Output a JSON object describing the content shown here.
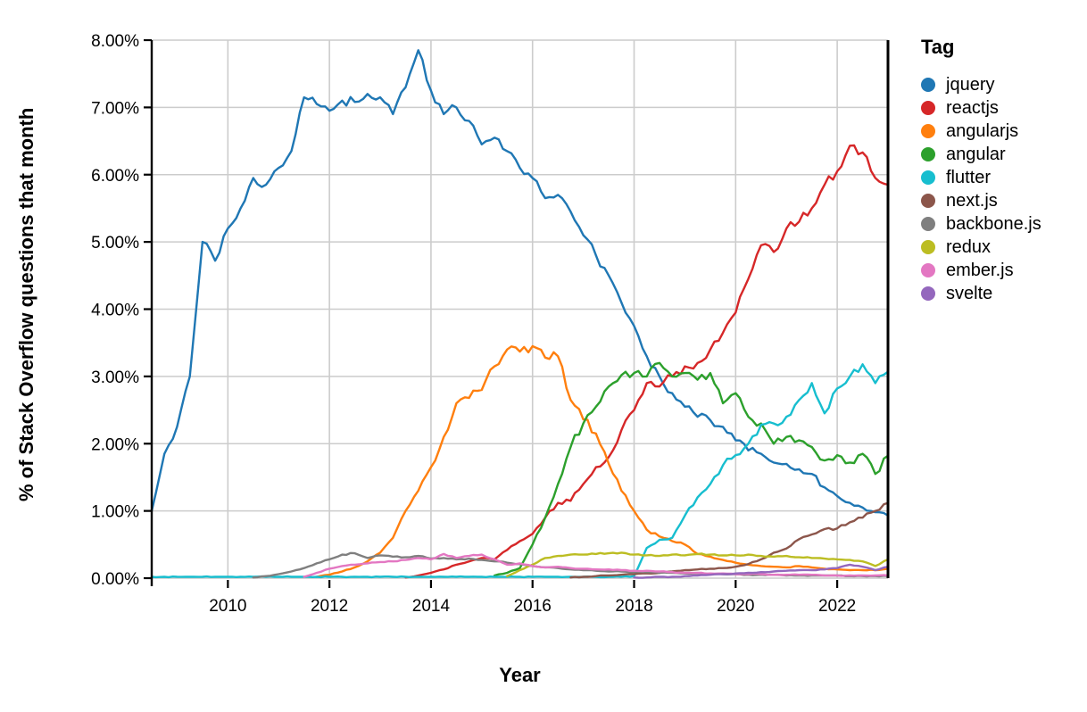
{
  "figure": {
    "y_axis": {
      "title": "% of Stack Overflow questions that month",
      "tick_labels": [
        "8.00%",
        "7.00%",
        "6.00%",
        "5.00%",
        "4.00%",
        "3.00%",
        "2.00%",
        "1.00%",
        "0.00%"
      ],
      "tick_values": [
        8,
        7,
        6,
        5,
        4,
        3,
        2,
        1,
        0
      ]
    },
    "x_axis": {
      "title": "Year",
      "tick_labels": [
        "2010",
        "2012",
        "2014",
        "2016",
        "2018",
        "2020",
        "2022"
      ],
      "tick_values": [
        2010,
        2012,
        2014,
        2016,
        2018,
        2020,
        2022
      ]
    },
    "legend": {
      "title": "Tag",
      "items": [
        {
          "label": "jquery",
          "color": "#1f77b4"
        },
        {
          "label": "reactjs",
          "color": "#d62728"
        },
        {
          "label": "angularjs",
          "color": "#ff7f0e"
        },
        {
          "label": "angular",
          "color": "#2ca02c"
        },
        {
          "label": "flutter",
          "color": "#17becf"
        },
        {
          "label": "next.js",
          "color": "#8c564b"
        },
        {
          "label": "backbone.js",
          "color": "#7f7f7f"
        },
        {
          "label": "redux",
          "color": "#bcbd22"
        },
        {
          "label": "ember.js",
          "color": "#e377c2"
        },
        {
          "label": "svelte",
          "color": "#9467bd"
        }
      ]
    }
  },
  "chart_data": {
    "type": "line",
    "title": "",
    "xlabel": "Year",
    "ylabel": "% of Stack Overflow questions that month",
    "x_range": [
      2008.5,
      2023
    ],
    "y_range": [
      0,
      8
    ],
    "grid": true,
    "legend_position": "right",
    "legend_title": "Tag",
    "x": [
      2008.5,
      2008.75,
      2009,
      2009.25,
      2009.5,
      2009.75,
      2010,
      2010.25,
      2010.5,
      2010.75,
      2011,
      2011.25,
      2011.5,
      2011.75,
      2012,
      2012.25,
      2012.5,
      2012.75,
      2013,
      2013.25,
      2013.5,
      2013.75,
      2014,
      2014.25,
      2014.5,
      2014.75,
      2015,
      2015.25,
      2015.5,
      2015.75,
      2016,
      2016.25,
      2016.5,
      2016.75,
      2017,
      2017.25,
      2017.5,
      2017.75,
      2018,
      2018.25,
      2018.5,
      2018.75,
      2019,
      2019.25,
      2019.5,
      2019.75,
      2020,
      2020.25,
      2020.5,
      2020.75,
      2021,
      2021.25,
      2021.5,
      2021.75,
      2022,
      2022.25,
      2022.5,
      2022.75,
      2023
    ],
    "series": [
      {
        "name": "jquery",
        "color": "#1f77b4",
        "values": [
          1.0,
          1.85,
          2.25,
          3.0,
          5.0,
          4.72,
          5.2,
          5.5,
          5.95,
          5.85,
          6.1,
          6.35,
          7.15,
          7.05,
          6.95,
          7.1,
          7.08,
          7.2,
          7.15,
          6.9,
          7.3,
          7.85,
          7.25,
          6.9,
          7.0,
          6.8,
          6.45,
          6.55,
          6.35,
          6.1,
          5.95,
          5.65,
          5.7,
          5.45,
          5.1,
          4.8,
          4.5,
          4.1,
          3.75,
          3.3,
          3.0,
          2.75,
          2.55,
          2.4,
          2.35,
          2.25,
          2.05,
          1.9,
          1.85,
          1.72,
          1.7,
          1.62,
          1.55,
          1.35,
          1.22,
          1.12,
          1.05,
          0.98,
          0.93
        ]
      },
      {
        "name": "reactjs",
        "color": "#d62728",
        "values": [
          null,
          null,
          null,
          null,
          null,
          null,
          null,
          null,
          null,
          null,
          null,
          null,
          null,
          null,
          null,
          null,
          null,
          null,
          null,
          null,
          0.01,
          0.04,
          0.08,
          0.13,
          0.2,
          0.25,
          0.3,
          0.28,
          0.42,
          0.55,
          0.66,
          0.9,
          1.12,
          1.15,
          1.4,
          1.65,
          1.8,
          2.2,
          2.5,
          2.9,
          2.85,
          3.0,
          3.15,
          3.2,
          3.4,
          3.65,
          3.95,
          4.45,
          4.95,
          4.85,
          5.2,
          5.3,
          5.5,
          5.85,
          6.05,
          6.43,
          6.33,
          5.95,
          5.85
        ]
      },
      {
        "name": "angularjs",
        "color": "#ff7f0e",
        "values": [
          null,
          null,
          null,
          null,
          null,
          null,
          null,
          null,
          null,
          null,
          null,
          null,
          null,
          0.02,
          0.05,
          0.1,
          0.16,
          0.25,
          0.38,
          0.6,
          1.0,
          1.3,
          1.65,
          2.1,
          2.6,
          2.68,
          2.8,
          3.15,
          3.4,
          3.37,
          3.45,
          3.28,
          3.3,
          2.65,
          2.36,
          2.15,
          1.7,
          1.3,
          1.0,
          0.72,
          0.62,
          0.55,
          0.5,
          0.36,
          0.32,
          0.27,
          0.23,
          0.2,
          0.18,
          0.17,
          0.16,
          0.18,
          0.16,
          0.14,
          0.13,
          0.12,
          0.12,
          0.12,
          0.14
        ]
      },
      {
        "name": "angular",
        "color": "#2ca02c",
        "values": [
          null,
          null,
          null,
          null,
          null,
          null,
          null,
          null,
          null,
          null,
          null,
          null,
          null,
          null,
          null,
          null,
          null,
          null,
          null,
          null,
          null,
          null,
          null,
          null,
          null,
          null,
          null,
          0.04,
          0.08,
          0.15,
          0.5,
          0.9,
          1.4,
          1.95,
          2.3,
          2.55,
          2.85,
          3.02,
          3.05,
          3.0,
          3.2,
          3.0,
          3.05,
          2.95,
          3.05,
          2.6,
          2.75,
          2.4,
          2.3,
          2.0,
          2.1,
          2.05,
          1.95,
          1.75,
          1.83,
          1.72,
          1.85,
          1.55,
          1.82
        ]
      },
      {
        "name": "flutter",
        "color": "#17becf",
        "values": [
          0.02,
          0.02,
          0.02,
          0.02,
          0.02,
          0.02,
          0.02,
          0.02,
          0.02,
          0.02,
          0.02,
          0.02,
          0.02,
          0.02,
          0.02,
          0.02,
          0.02,
          0.02,
          0.02,
          0.02,
          0.02,
          0.02,
          0.02,
          0.02,
          0.02,
          0.02,
          0.02,
          0.02,
          0.02,
          0.02,
          0.02,
          0.02,
          0.02,
          0.02,
          0.02,
          0.02,
          0.02,
          0.02,
          0.03,
          0.45,
          0.57,
          0.6,
          0.93,
          1.2,
          1.4,
          1.68,
          1.83,
          2.0,
          2.28,
          2.3,
          2.4,
          2.65,
          2.9,
          2.45,
          2.82,
          3.0,
          3.18,
          2.9,
          3.07
        ]
      },
      {
        "name": "next.js",
        "color": "#8c564b",
        "values": [
          null,
          null,
          null,
          null,
          null,
          null,
          null,
          null,
          null,
          null,
          null,
          null,
          null,
          null,
          null,
          null,
          null,
          null,
          null,
          null,
          null,
          null,
          null,
          null,
          null,
          null,
          null,
          null,
          null,
          null,
          null,
          null,
          null,
          0.01,
          0.02,
          0.03,
          0.04,
          0.05,
          0.06,
          0.07,
          0.08,
          0.1,
          0.12,
          0.13,
          0.14,
          0.15,
          0.17,
          0.21,
          0.28,
          0.38,
          0.44,
          0.58,
          0.65,
          0.73,
          0.74,
          0.83,
          0.9,
          1.0,
          1.12
        ]
      },
      {
        "name": "backbone.js",
        "color": "#7f7f7f",
        "values": [
          null,
          null,
          null,
          null,
          null,
          null,
          null,
          null,
          0.01,
          0.03,
          0.06,
          0.1,
          0.15,
          0.22,
          0.28,
          0.35,
          0.37,
          0.3,
          0.34,
          0.32,
          0.31,
          0.33,
          0.29,
          0.3,
          0.28,
          0.29,
          0.27,
          0.25,
          0.23,
          0.21,
          0.18,
          0.16,
          0.15,
          0.13,
          0.12,
          0.11,
          0.1,
          0.1,
          0.09,
          0.09,
          0.08,
          0.08,
          0.07,
          0.07,
          0.06,
          0.06,
          0.06,
          0.05,
          0.05,
          0.05,
          0.04,
          0.04,
          0.04,
          0.04,
          0.04,
          0.03,
          0.03,
          0.03,
          0.03
        ]
      },
      {
        "name": "redux",
        "color": "#bcbd22",
        "values": [
          null,
          null,
          null,
          null,
          null,
          null,
          null,
          null,
          null,
          null,
          null,
          null,
          null,
          null,
          null,
          null,
          null,
          null,
          null,
          null,
          null,
          null,
          null,
          null,
          null,
          null,
          null,
          null,
          0.03,
          0.12,
          0.2,
          0.3,
          0.33,
          0.35,
          0.35,
          0.36,
          0.37,
          0.38,
          0.35,
          0.34,
          0.33,
          0.35,
          0.34,
          0.36,
          0.35,
          0.34,
          0.34,
          0.35,
          0.33,
          0.32,
          0.33,
          0.31,
          0.3,
          0.29,
          0.28,
          0.27,
          0.25,
          0.18,
          0.28
        ]
      },
      {
        "name": "ember.js",
        "color": "#e377c2",
        "values": [
          null,
          null,
          null,
          null,
          null,
          null,
          null,
          null,
          null,
          null,
          null,
          null,
          0.02,
          0.08,
          0.14,
          0.18,
          0.2,
          0.22,
          0.24,
          0.25,
          0.27,
          0.3,
          0.28,
          0.36,
          0.3,
          0.33,
          0.35,
          0.28,
          0.2,
          0.22,
          0.18,
          0.16,
          0.17,
          0.15,
          0.14,
          0.13,
          0.13,
          0.12,
          0.11,
          0.11,
          0.1,
          0.09,
          0.08,
          0.08,
          0.07,
          0.07,
          0.06,
          0.06,
          0.06,
          0.05,
          0.05,
          0.05,
          0.05,
          0.04,
          0.04,
          0.04,
          0.04,
          0.04,
          0.04
        ]
      },
      {
        "name": "svelte",
        "color": "#9467bd",
        "values": [
          null,
          null,
          null,
          null,
          null,
          null,
          null,
          null,
          null,
          null,
          null,
          null,
          null,
          null,
          null,
          null,
          null,
          null,
          null,
          null,
          null,
          null,
          null,
          null,
          null,
          null,
          null,
          null,
          null,
          null,
          null,
          null,
          null,
          null,
          null,
          null,
          null,
          null,
          0.01,
          0.01,
          0.02,
          0.02,
          0.03,
          0.04,
          0.05,
          0.06,
          0.07,
          0.08,
          0.09,
          0.1,
          0.11,
          0.12,
          0.12,
          0.13,
          0.15,
          0.2,
          0.17,
          0.12,
          0.17
        ]
      }
    ]
  }
}
